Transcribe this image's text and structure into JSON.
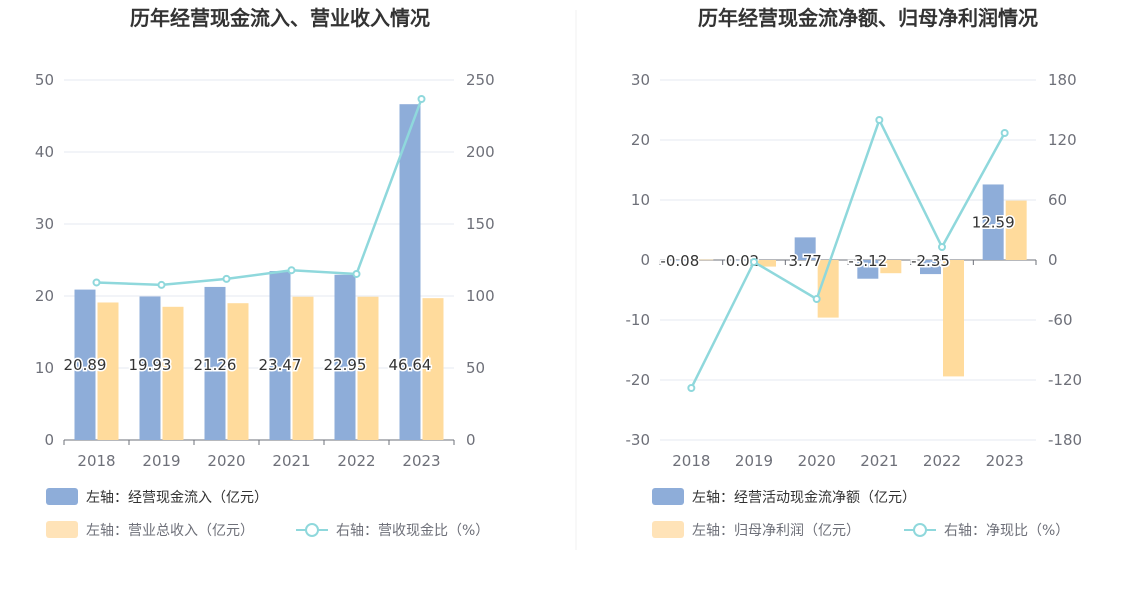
{
  "charts": [
    {
      "title": "历年经营现金流入、营业收入情况",
      "legend": [
        {
          "label": "左轴：经营现金流入（亿元）",
          "color": "#8eadd9",
          "kind": "bar"
        },
        {
          "label": "左轴：营业总收入（亿元）",
          "color": "#ffe3b8",
          "kind": "bar"
        },
        {
          "label": "右轴：营收现金比（%）",
          "color": "#8fd8dc",
          "kind": "line"
        }
      ]
    },
    {
      "title": "历年经营现金流净额、归母净利润情况",
      "legend": [
        {
          "label": "左轴：经营活动现金流净额（亿元）",
          "color": "#8eadd9",
          "kind": "bar"
        },
        {
          "label": "左轴：归母净利润（亿元）",
          "color": "#ffe3b8",
          "kind": "bar"
        },
        {
          "label": "右轴：净现比（%）",
          "color": "#8fd8dc",
          "kind": "line"
        }
      ]
    }
  ],
  "colors": {
    "bar1": "#8eadd9",
    "bar2": "#ffdb9c",
    "line": "#8fd8dc",
    "grid": "#e6e9f2",
    "axis": "#6e7079"
  },
  "chart_data": [
    {
      "type": "bar",
      "title": "历年经营现金流入、营业收入情况",
      "categories": [
        "2018",
        "2019",
        "2020",
        "2021",
        "2022",
        "2023"
      ],
      "series": [
        {
          "name": "左轴：经营现金流入（亿元）",
          "axis": "left",
          "type": "bar",
          "values": [
            20.89,
            19.93,
            21.26,
            23.47,
            22.95,
            46.64
          ]
        },
        {
          "name": "左轴：营业总收入（亿元）",
          "axis": "left",
          "type": "bar",
          "values": [
            19.1,
            18.5,
            19.0,
            19.9,
            19.9,
            19.7
          ]
        },
        {
          "name": "右轴：营收现金比（%）",
          "axis": "right",
          "type": "line",
          "values": [
            109.4,
            107.7,
            111.9,
            117.9,
            115.3,
            236.8
          ]
        }
      ],
      "left_axis": {
        "ylim": [
          0,
          50
        ],
        "ticks": [
          "0",
          "10",
          "20",
          "30",
          "40",
          "50"
        ]
      },
      "right_axis": {
        "ylim": [
          0,
          250
        ],
        "ticks": [
          "0",
          "50",
          "100",
          "150",
          "200",
          "250"
        ]
      },
      "data_labels": [
        "20.89",
        "19.93",
        "21.26",
        "23.47",
        "22.95",
        "46.64"
      ],
      "grid": true,
      "legend": "bottom-left"
    },
    {
      "type": "bar",
      "title": "历年经营现金流净额、归母净利润情况",
      "categories": [
        "2018",
        "2019",
        "2020",
        "2021",
        "2022",
        "2023"
      ],
      "series": [
        {
          "name": "左轴：经营活动现金流净额（亿元）",
          "axis": "left",
          "type": "bar",
          "values": [
            -0.08,
            0.02,
            3.77,
            -3.12,
            -2.35,
            12.59
          ]
        },
        {
          "name": "左轴：归母净利润（亿元）",
          "axis": "left",
          "type": "bar",
          "values": [
            0.06,
            -1.1,
            -9.6,
            -2.2,
            -19.4,
            9.9
          ]
        },
        {
          "name": "右轴：净现比（%）",
          "axis": "right",
          "type": "line",
          "values": [
            -128,
            -2,
            -39,
            140,
            13,
            127
          ]
        }
      ],
      "left_axis": {
        "ylim": [
          -30,
          30
        ],
        "ticks": [
          "-30",
          "-20",
          "-10",
          "0",
          "10",
          "20",
          "30"
        ]
      },
      "right_axis": {
        "ylim": [
          -180,
          180
        ],
        "ticks": [
          "-180",
          "-120",
          "-60",
          "0",
          "60",
          "120",
          "180"
        ]
      },
      "data_labels": [
        "-0.08",
        "0.02",
        "3.77",
        "-3.12",
        "-2.35",
        "12.59"
      ],
      "grid": true,
      "legend": "bottom-left"
    }
  ]
}
